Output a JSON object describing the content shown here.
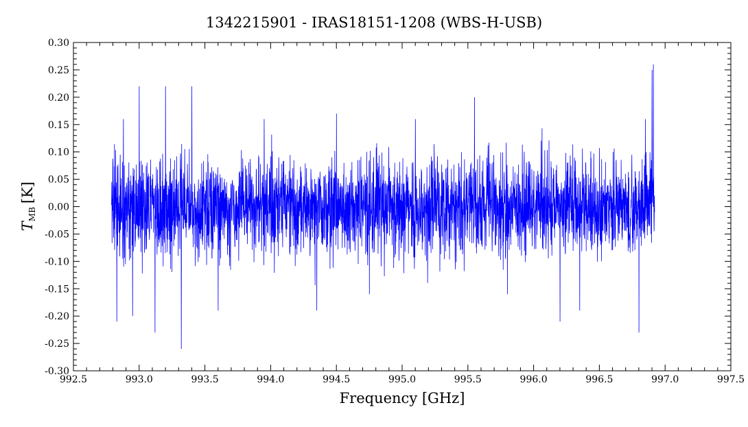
{
  "chart_data": {
    "type": "line",
    "title": "1342215901 - IRAS18151-1208 (WBS-H-USB)",
    "xlabel": "Frequency [GHz]",
    "ylabel_main": "T",
    "ylabel_sub": "MB",
    "ylabel_unit": "[K]",
    "xlim": [
      992.5,
      997.5
    ],
    "ylim": [
      -0.3,
      0.3
    ],
    "x_ticks": [
      "992.5",
      "993.0",
      "993.5",
      "994.0",
      "994.5",
      "995.0",
      "995.5",
      "996.0",
      "996.5",
      "997.0",
      "997.5"
    ],
    "y_ticks": [
      "-0.30",
      "-0.25",
      "-0.20",
      "-0.15",
      "-0.10",
      "-0.05",
      "0.00",
      "0.05",
      "0.10",
      "0.15",
      "0.20",
      "0.25",
      "0.30"
    ],
    "grid": false,
    "legend": "none",
    "series": [
      {
        "color": "#0000ff",
        "x_range": [
          992.79,
          996.92
        ],
        "noise_rms": 0.06,
        "x": [
          992.8,
          992.83,
          992.88,
          992.95,
          993.0,
          993.12,
          993.2,
          993.32,
          993.4,
          993.6,
          993.95,
          994.35,
          994.5,
          994.75,
          995.1,
          995.55,
          995.8,
          996.2,
          996.35,
          996.8,
          996.85,
          996.9,
          996.91
        ],
        "y": [
          0.08,
          -0.21,
          0.16,
          -0.2,
          0.22,
          -0.23,
          0.22,
          -0.26,
          0.22,
          -0.19,
          0.16,
          -0.19,
          0.17,
          -0.16,
          0.16,
          0.2,
          -0.16,
          -0.21,
          -0.19,
          -0.23,
          0.16,
          0.25,
          0.26
        ]
      }
    ]
  }
}
